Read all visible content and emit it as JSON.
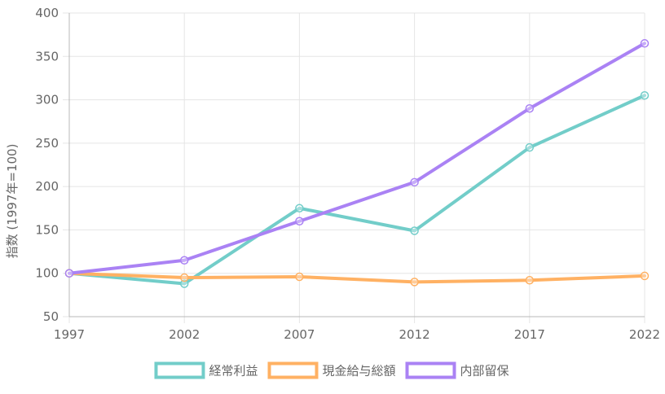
{
  "chart_data": {
    "type": "line",
    "title": "",
    "xlabel": "",
    "ylabel": "指数 (1997年=100)",
    "x": [
      "1997",
      "2002",
      "2007",
      "2012",
      "2017",
      "2022"
    ],
    "ylim": [
      50,
      400
    ],
    "yticks": [
      50,
      100,
      150,
      200,
      250,
      300,
      350,
      400
    ],
    "grid": true,
    "legend_position": "bottom",
    "series": [
      {
        "name": "経常利益",
        "color": "#72cdc9",
        "values": [
          100,
          88,
          175,
          149,
          245,
          305
        ]
      },
      {
        "name": "現金給与総額",
        "color": "#ffb163",
        "values": [
          100,
          95,
          96,
          90,
          92,
          97
        ]
      },
      {
        "name": "内部留保",
        "color": "#aa82f4",
        "values": [
          100,
          115,
          160,
          205,
          290,
          365
        ]
      }
    ]
  }
}
